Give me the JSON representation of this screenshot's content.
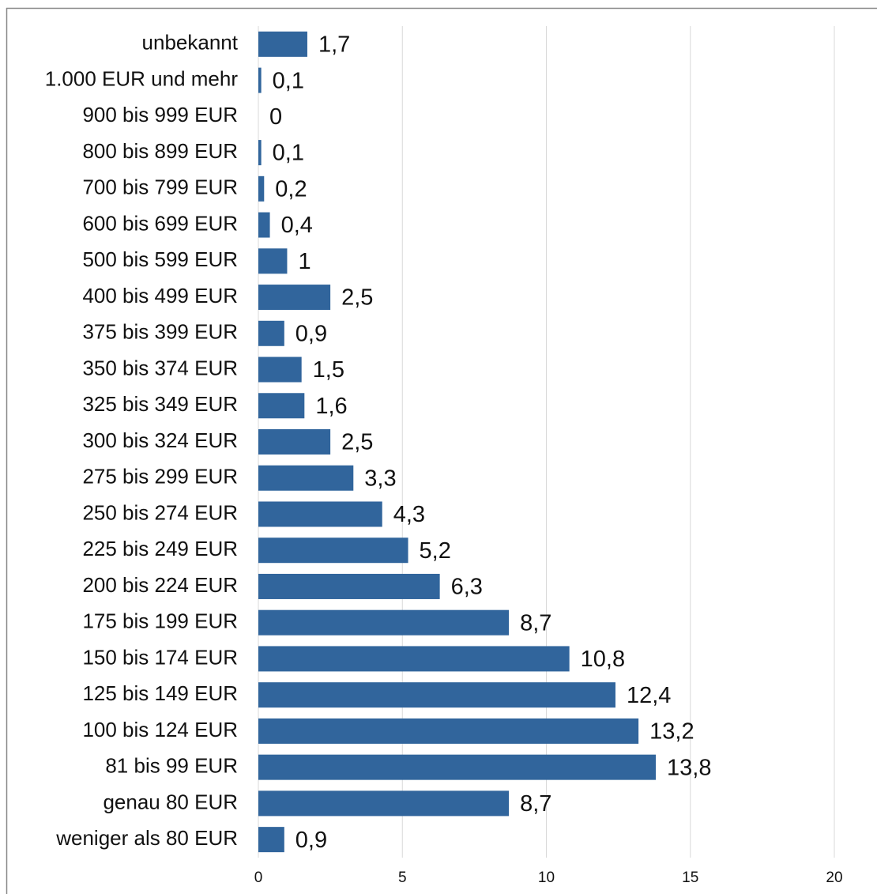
{
  "chart_data": {
    "type": "bar",
    "orientation": "horizontal",
    "categories": [
      "unbekannt",
      "1.000 EUR und mehr",
      "900 bis 999 EUR",
      "800 bis 899 EUR",
      "700 bis 799 EUR",
      "600 bis 699 EUR",
      "500 bis 599 EUR",
      "400 bis 499 EUR",
      "375 bis 399 EUR",
      "350 bis 374 EUR",
      "325 bis 349 EUR",
      "300 bis 324 EUR",
      "275 bis 299 EUR",
      "250 bis 274 EUR",
      "225 bis 249 EUR",
      "200 bis 224 EUR",
      "175 bis 199 EUR",
      "150 bis 174 EUR",
      "125 bis 149 EUR",
      "100 bis 124 EUR",
      "81 bis 99 EUR",
      "genau 80 EUR",
      "weniger als 80 EUR"
    ],
    "values": [
      1.7,
      0.1,
      0,
      0.1,
      0.2,
      0.4,
      1,
      2.5,
      0.9,
      1.5,
      1.6,
      2.5,
      3.3,
      4.3,
      5.2,
      6.3,
      8.7,
      10.8,
      12.4,
      13.2,
      13.8,
      8.7,
      0.9
    ],
    "value_labels": [
      "1,7",
      "0,1",
      "0",
      "0,1",
      "0,2",
      "0,4",
      "1",
      "2,5",
      "0,9",
      "1,5",
      "1,6",
      "2,5",
      "3,3",
      "4,3",
      "5,2",
      "6,3",
      "8,7",
      "10,8",
      "12,4",
      "13,2",
      "13,8",
      "8,7",
      "0,9"
    ],
    "color": "#31659c",
    "xlim": [
      0,
      20
    ],
    "xticks": [
      0,
      5,
      10,
      15,
      20
    ],
    "grid": true
  }
}
